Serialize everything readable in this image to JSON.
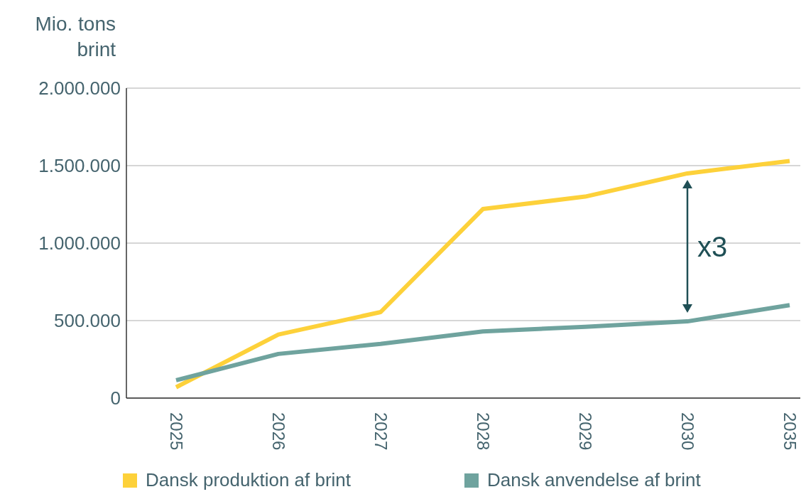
{
  "chart_data": {
    "type": "line",
    "ylabel": "Mio. tons brint",
    "categories": [
      "2025",
      "2026",
      "2027",
      "2028",
      "2029",
      "2030",
      "2035"
    ],
    "series": [
      {
        "name": "Dansk produktion af brint",
        "color": "#fdd13a",
        "values": [
          70000,
          410000,
          555000,
          1220000,
          1300000,
          1450000,
          1530000
        ]
      },
      {
        "name": "Dansk anvendelse af brint",
        "color": "#6fa39e",
        "values": [
          115000,
          285000,
          350000,
          430000,
          460000,
          495000,
          600000
        ]
      }
    ],
    "ylim": [
      0,
      2000000
    ],
    "yticks": [
      0,
      {
        "value": 500000,
        "label": "500.000"
      },
      {
        "value": 1000000,
        "label": "1.000.000"
      },
      {
        "value": 1500000,
        "label": "1.500.000"
      },
      {
        "value": 2000000,
        "label": "2.000.000"
      }
    ],
    "grid": "y",
    "legend": "bottom",
    "marker": "none",
    "line_style": "solid",
    "annotations": [
      "x3"
    ]
  }
}
